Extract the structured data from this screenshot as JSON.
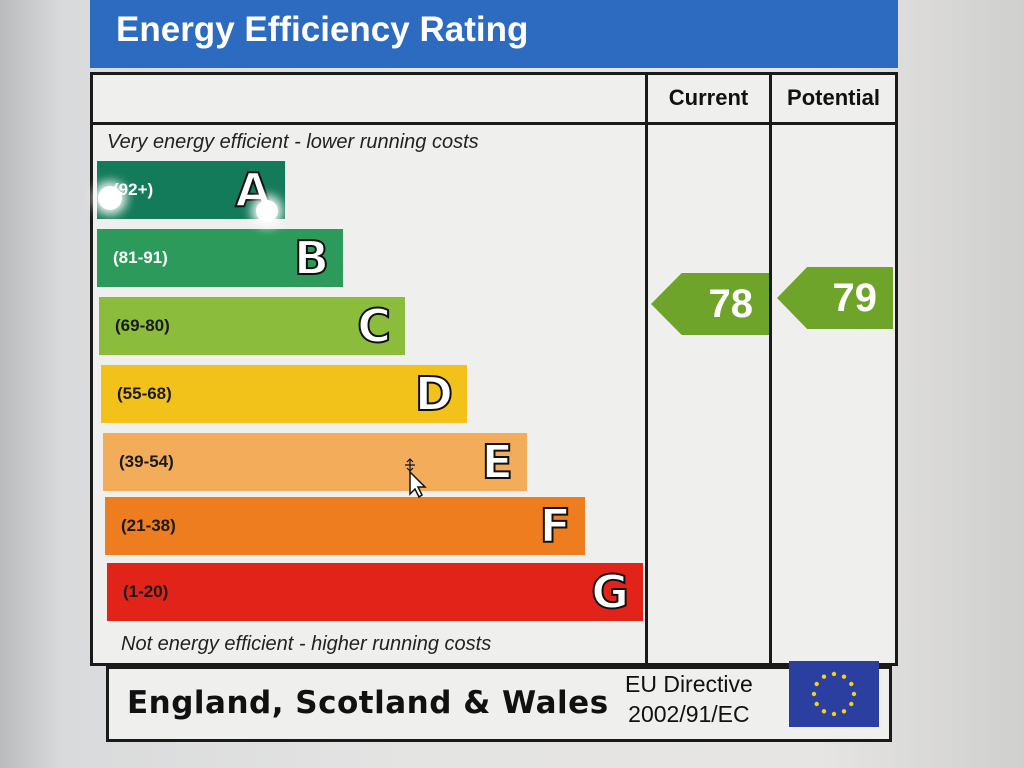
{
  "title": "Energy Efficiency Rating",
  "columns": {
    "current": "Current",
    "potential": "Potential"
  },
  "notes": {
    "top": "Very energy efficient - lower running costs",
    "bottom": "Not energy efficient - higher running costs"
  },
  "bands": [
    {
      "letter": "A",
      "range": "(92+)",
      "color": "#137a5a",
      "range_color": "#ffffff"
    },
    {
      "letter": "B",
      "range": "(81-91)",
      "color": "#2c9a5a",
      "range_color": "#ffffff"
    },
    {
      "letter": "C",
      "range": "(69-80)",
      "color": "#8cbc3c",
      "range_color": "#1a1a1a"
    },
    {
      "letter": "D",
      "range": "(55-68)",
      "color": "#f2c21a",
      "range_color": "#1a1a1a"
    },
    {
      "letter": "E",
      "range": "(39-54)",
      "color": "#f3ad5a",
      "range_color": "#1a1a1a"
    },
    {
      "letter": "F",
      "range": "(21-38)",
      "color": "#ed7d1e",
      "range_color": "#1a1a1a"
    },
    {
      "letter": "G",
      "range": "(1-20)",
      "color": "#e2231a",
      "range_color": "#1a1a1a"
    }
  ],
  "ratings": {
    "current": {
      "value": "78",
      "band": "C",
      "color": "#6fa42a"
    },
    "potential": {
      "value": "79",
      "band": "C",
      "color": "#6fa42a"
    }
  },
  "footer": {
    "region": "England, Scotland & Wales",
    "directive_line1": "EU Directive",
    "directive_line2": "2002/91/EC",
    "flag_icon": "eu-flag-icon"
  },
  "cursor_icon": "move-cursor-icon"
}
